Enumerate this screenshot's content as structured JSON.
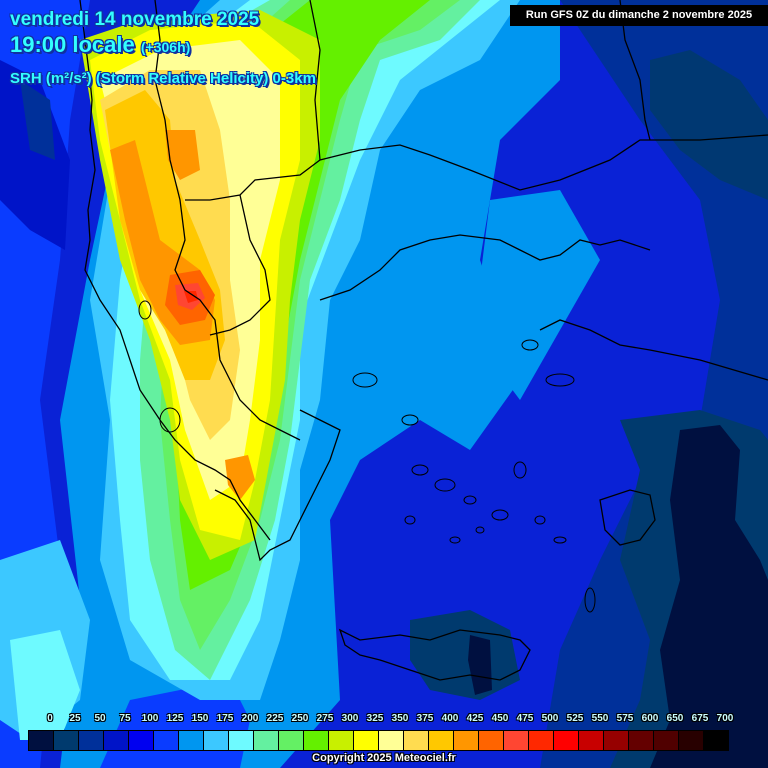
{
  "header": {
    "date_line": "vendredi 14 novembre 2025",
    "time_main": "19:00 locale",
    "lead_time": "(+306h)",
    "parameter": "SRH (m²/s²) (Storm Relative Helicity) 0-3km"
  },
  "run_banner": "Run GFS 0Z du dimanche 2 novembre 2025",
  "colorbar": {
    "ticks": [
      "0",
      "25",
      "50",
      "75",
      "100",
      "125",
      "150",
      "175",
      "200",
      "225",
      "250",
      "275",
      "300",
      "325",
      "350",
      "375",
      "400",
      "425",
      "450",
      "475",
      "500",
      "525",
      "550",
      "575",
      "600",
      "650",
      "675",
      "700"
    ],
    "colors": [
      "#001040",
      "#003a6e",
      "#00309a",
      "#0014c8",
      "#0000f0",
      "#0a3cff",
      "#0096f0",
      "#3cc8ff",
      "#6efaff",
      "#64f0a0",
      "#64f064",
      "#64f000",
      "#c8f000",
      "#ffff00",
      "#ffff96",
      "#ffdc50",
      "#ffc800",
      "#ff9600",
      "#ff6400",
      "#ff4632",
      "#ff2800",
      "#ff0000",
      "#c80000",
      "#960000",
      "#640000",
      "#500000",
      "#280000",
      "#000000"
    ]
  },
  "copyright": "Copyright 2025 Meteociel.fr",
  "map": {
    "region": "Greece / Balkans / Aegean / western Turkey",
    "max_zone_color": "#ff2800"
  }
}
